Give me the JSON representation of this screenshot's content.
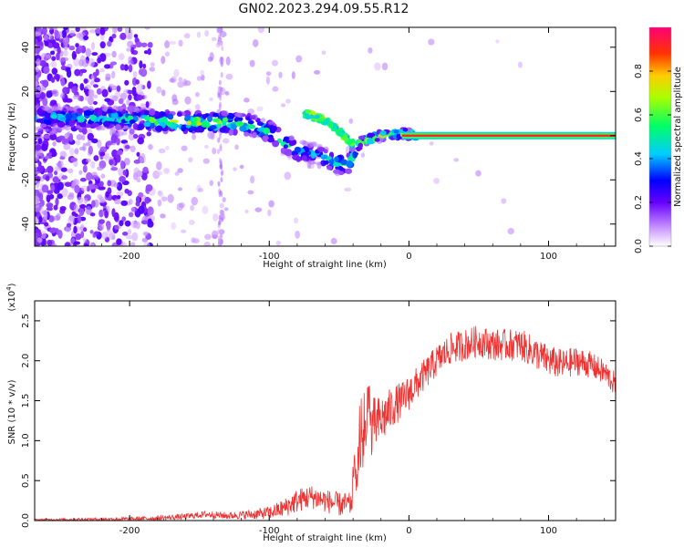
{
  "title": "GN02.2023.294.09.55.R12",
  "colors": {
    "snr_line": "#ee3333",
    "axis": "#000000"
  },
  "chart_data": [
    {
      "type": "heatmap",
      "name": "spectrogram",
      "xlabel": "Height of straight line (km)",
      "ylabel": "Frequency (Hz)",
      "xlim": [
        -268,
        148
      ],
      "ylim": [
        -50,
        49
      ],
      "xticks": [
        -200,
        -100,
        0,
        100
      ],
      "yticks": [
        -40,
        -20,
        0,
        20,
        40
      ],
      "colorbar": {
        "label": "Normalized spectral amplitude",
        "range": [
          0.0,
          1.0
        ],
        "ticks": [
          0.0,
          0.2,
          0.4,
          0.6,
          0.8
        ],
        "colormap": "rainbow"
      },
      "ridge": [
        {
          "x": -268,
          "f": 8,
          "a": 0.45
        },
        {
          "x": -240,
          "f": 8,
          "a": 0.5
        },
        {
          "x": -220,
          "f": 8,
          "a": 0.55
        },
        {
          "x": -200,
          "f": 8,
          "a": 0.6
        },
        {
          "x": -185,
          "f": 7,
          "a": 0.65
        },
        {
          "x": -170,
          "f": 6,
          "a": 0.75
        },
        {
          "x": -150,
          "f": 6,
          "a": 0.75
        },
        {
          "x": -130,
          "f": 6,
          "a": 0.7
        },
        {
          "x": -115,
          "f": 5,
          "a": 0.65
        },
        {
          "x": -100,
          "f": 2,
          "a": 0.6
        },
        {
          "x": -90,
          "f": -3,
          "a": 0.55
        },
        {
          "x": -80,
          "f": -7,
          "a": 0.5
        },
        {
          "x": -70,
          "f": -8,
          "a": 0.45
        },
        {
          "x": -60,
          "f": -10,
          "a": 0.5
        },
        {
          "x": -50,
          "f": -13,
          "a": 0.6
        },
        {
          "x": -42,
          "f": -12,
          "a": 0.6
        },
        {
          "x": -35,
          "f": -3,
          "a": 0.8
        },
        {
          "x": -20,
          "f": 0,
          "a": 0.85
        },
        {
          "x": -5,
          "f": 1,
          "a": 0.9
        },
        {
          "x": 10,
          "f": 0,
          "a": 0.95
        },
        {
          "x": 50,
          "f": 0,
          "a": 0.95
        },
        {
          "x": 100,
          "f": 0,
          "a": 0.95
        },
        {
          "x": 148,
          "f": 0,
          "a": 0.95
        }
      ],
      "side_branch": [
        {
          "x": -75,
          "f": 10,
          "a": 0.7
        },
        {
          "x": -60,
          "f": 7,
          "a": 0.7
        },
        {
          "x": -50,
          "f": 2,
          "a": 0.65
        },
        {
          "x": -40,
          "f": -4,
          "a": 0.6
        }
      ]
    },
    {
      "type": "line",
      "name": "snr",
      "xlabel": "Height of straight line (km)",
      "ylabel": "SNR (10 * v/v)",
      "multiplier": "(x10",
      "multiplier_exp": "4",
      "multiplier_close": ")",
      "xlim": [
        -268,
        148
      ],
      "ylim": [
        0.0,
        2.75
      ],
      "xticks": [
        -200,
        -100,
        0,
        100
      ],
      "yticks": [
        0.0,
        0.5,
        1.0,
        1.5,
        2.0,
        2.5
      ],
      "ytick_labels": [
        "0.0",
        "0.5",
        "1.0",
        "1.5",
        "2.0",
        "2.5"
      ],
      "envelope": {
        "x": [
          -268,
          -200,
          -180,
          -160,
          -145,
          -130,
          -110,
          -100,
          -90,
          -80,
          -70,
          -60,
          -50,
          -42,
          -38,
          -35,
          -30,
          -25,
          -20,
          -15,
          -10,
          -5,
          0,
          5,
          10,
          20,
          30,
          40,
          50,
          60,
          70,
          80,
          90,
          100,
          110,
          120,
          130,
          140,
          148
        ],
        "y": [
          0.01,
          0.02,
          0.03,
          0.05,
          0.08,
          0.06,
          0.08,
          0.1,
          0.15,
          0.25,
          0.3,
          0.25,
          0.2,
          0.2,
          0.5,
          0.9,
          1.1,
          1.2,
          1.25,
          1.35,
          1.45,
          1.5,
          1.6,
          1.7,
          1.8,
          2.0,
          2.15,
          2.2,
          2.25,
          2.2,
          2.2,
          2.2,
          2.1,
          2.0,
          1.95,
          2.0,
          1.95,
          1.85,
          1.7
        ]
      },
      "noise": {
        "x": [
          -268,
          -180,
          -120,
          -100,
          -80,
          -60,
          -42,
          -35,
          -25,
          -10,
          10,
          30,
          60,
          100,
          148
        ],
        "y": [
          0.01,
          0.03,
          0.05,
          0.08,
          0.15,
          0.15,
          0.15,
          0.4,
          0.35,
          0.25,
          0.2,
          0.2,
          0.2,
          0.2,
          0.15
        ]
      }
    }
  ]
}
